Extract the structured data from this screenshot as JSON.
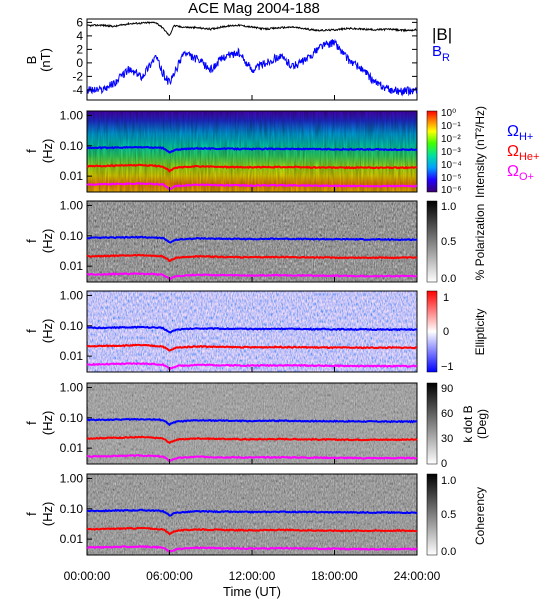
{
  "title": "ACE Mag 2004-188",
  "x_axis": {
    "label": "Time (UT)",
    "ticks": [
      "00:00:00",
      "06:00:00",
      "12:00:00",
      "18:00:00",
      "24:00:00"
    ]
  },
  "legend_right": {
    "absB": "|B|",
    "BR_main": "B",
    "BR_sub": "R",
    "omega": "Ω",
    "H_sub": "H+",
    "He_sub": "He+",
    "O_sub": "O+"
  },
  "colors": {
    "absB": "#000000",
    "BR": "#0000ff",
    "omega_H": "#0000ff",
    "omega_He": "#ff0000",
    "omega_O": "#ff00ff"
  },
  "freq_panel_ylabel": {
    "top": "f",
    "bottom": "(Hz)"
  },
  "freq_yticks": [
    "1.00",
    "0.10",
    "0.01"
  ],
  "chart_data": [
    {
      "type": "line",
      "panel": "B",
      "ylabel_top": "B",
      "ylabel_bottom": "(nT)",
      "yticks": [
        6,
        4,
        2,
        0,
        -2,
        -4
      ],
      "ylim": [
        -5.5,
        6.5
      ],
      "xlim": [
        0,
        24
      ],
      "series": [
        {
          "name": "|B|",
          "x": [
            0,
            1,
            2,
            3,
            4,
            5,
            5.5,
            6,
            6.3,
            7,
            8,
            9,
            10,
            11,
            12,
            13,
            14,
            15,
            16,
            17,
            18,
            19,
            20,
            21,
            22,
            23,
            24
          ],
          "values": [
            5.5,
            5.6,
            5.4,
            5.8,
            5.9,
            6.0,
            5.2,
            4.0,
            5.5,
            5.3,
            5.2,
            5.0,
            5.4,
            5.6,
            5.3,
            5.0,
            5.2,
            5.3,
            5.0,
            4.8,
            4.9,
            5.1,
            5.0,
            4.9,
            5.0,
            4.8,
            4.9
          ]
        },
        {
          "name": "B_R",
          "x": [
            0,
            1,
            2,
            3,
            4,
            5,
            5.5,
            6,
            6.5,
            7,
            8,
            9,
            10,
            11,
            12,
            13,
            14,
            15,
            16,
            17,
            18,
            19,
            20,
            21,
            22,
            23,
            24
          ],
          "values": [
            -4.0,
            -4.0,
            -3.0,
            -1.0,
            -2.0,
            1.0,
            -1.5,
            -3.0,
            -1.0,
            1.5,
            0.5,
            -1.0,
            1.0,
            1.5,
            -1.0,
            0.0,
            1.0,
            -0.5,
            0.5,
            2.5,
            3.0,
            0.5,
            -1.0,
            -3.0,
            -4.0,
            -4.2,
            -4.0
          ]
        }
      ]
    },
    {
      "type": "heatmap",
      "panel": "intensity",
      "colorbar_label": "Intensity (nT²/Hz)",
      "colorbar_ticks": [
        "10⁰",
        "10⁻¹",
        "10⁻²",
        "10⁻³",
        "10⁻⁴",
        "10⁻⁵",
        "10⁻⁶"
      ],
      "colorscale": "rainbow",
      "ylim_hz": [
        0.003,
        1.4
      ]
    },
    {
      "type": "heatmap",
      "panel": "polarization",
      "colorbar_label": "% Polarization",
      "colorbar_ticks": [
        "1.0",
        "0.5",
        "0.0"
      ],
      "colorscale": "grayscale"
    },
    {
      "type": "heatmap",
      "panel": "ellipticity",
      "colorbar_label": "Ellipticity",
      "colorbar_ticks": [
        "1",
        "0",
        "−1"
      ],
      "colorscale": "blue-white-red"
    },
    {
      "type": "heatmap",
      "panel": "kdotb",
      "colorbar_label_top": "k dot B",
      "colorbar_label_bottom": "(Deg)",
      "colorbar_ticks": [
        "90",
        "60",
        "30",
        "0"
      ],
      "colorscale": "grayscale"
    },
    {
      "type": "heatmap",
      "panel": "coherency",
      "colorbar_label": "Coherency",
      "colorbar_ticks": [
        "1.0",
        "0.5",
        "0.0"
      ],
      "colorscale": "grayscale"
    }
  ],
  "gyrofrequency_lines": {
    "x": [
      0,
      2,
      4,
      5.5,
      6,
      6.5,
      8,
      10,
      12,
      14,
      16,
      18,
      20,
      22,
      24
    ],
    "H_hz": [
      0.085,
      0.087,
      0.09,
      0.085,
      0.06,
      0.075,
      0.082,
      0.08,
      0.078,
      0.08,
      0.078,
      0.077,
      0.076,
      0.075,
      0.075
    ],
    "He_hz": [
      0.021,
      0.022,
      0.023,
      0.021,
      0.015,
      0.019,
      0.021,
      0.02,
      0.0195,
      0.02,
      0.0195,
      0.019,
      0.019,
      0.019,
      0.019
    ],
    "O_hz": [
      0.0053,
      0.0055,
      0.0057,
      0.0053,
      0.0038,
      0.0047,
      0.0052,
      0.005,
      0.0049,
      0.005,
      0.0049,
      0.0048,
      0.0047,
      0.0047,
      0.0047
    ]
  }
}
